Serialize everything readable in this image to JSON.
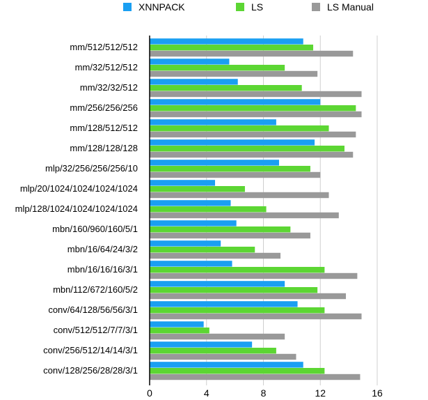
{
  "chart_data": {
    "type": "bar",
    "orientation": "horizontal",
    "title": "",
    "xlabel": "",
    "ylabel": "",
    "xlim": [
      0,
      16
    ],
    "xticks": [
      0,
      4,
      8,
      12,
      16
    ],
    "grid": true,
    "legend_position": "top",
    "categories": [
      "mm/512/512/512",
      "mm/32/512/512",
      "mm/32/32/512",
      "mm/256/256/256",
      "mm/128/512/512",
      "mm/128/128/128",
      "mlp/32/256/256/256/10",
      "mlp/20/1024/1024/1024/1024",
      "mlp/128/1024/1024/1024/1024",
      "mbn/160/960/160/5/1",
      "mbn/16/64/24/3/2",
      "mbn/16/16/16/3/1",
      "mbn/112/672/160/5/2",
      "conv/64/128/56/56/3/1",
      "conv/512/512/7/7/3/1",
      "conv/256/512/14/14/3/1",
      "conv/128/256/28/28/3/1"
    ],
    "series": [
      {
        "name": "XNNPACK",
        "color": "#1a9ff2",
        "values": [
          10.8,
          5.6,
          6.2,
          12.0,
          8.9,
          11.6,
          9.1,
          4.6,
          5.7,
          6.1,
          5.0,
          5.8,
          9.5,
          10.4,
          3.8,
          7.2,
          10.8
        ]
      },
      {
        "name": "LS",
        "color": "#5cd633",
        "values": [
          11.5,
          9.5,
          10.7,
          14.5,
          12.6,
          13.7,
          11.3,
          6.7,
          8.2,
          9.9,
          7.4,
          12.3,
          11.8,
          12.3,
          4.2,
          8.9,
          12.3
        ]
      },
      {
        "name": "LS Manual",
        "color": "#999999",
        "values": [
          14.3,
          11.8,
          14.9,
          14.9,
          14.5,
          14.3,
          12.0,
          12.6,
          13.3,
          11.3,
          9.2,
          14.6,
          13.8,
          14.9,
          9.5,
          10.3,
          14.8
        ]
      }
    ]
  }
}
